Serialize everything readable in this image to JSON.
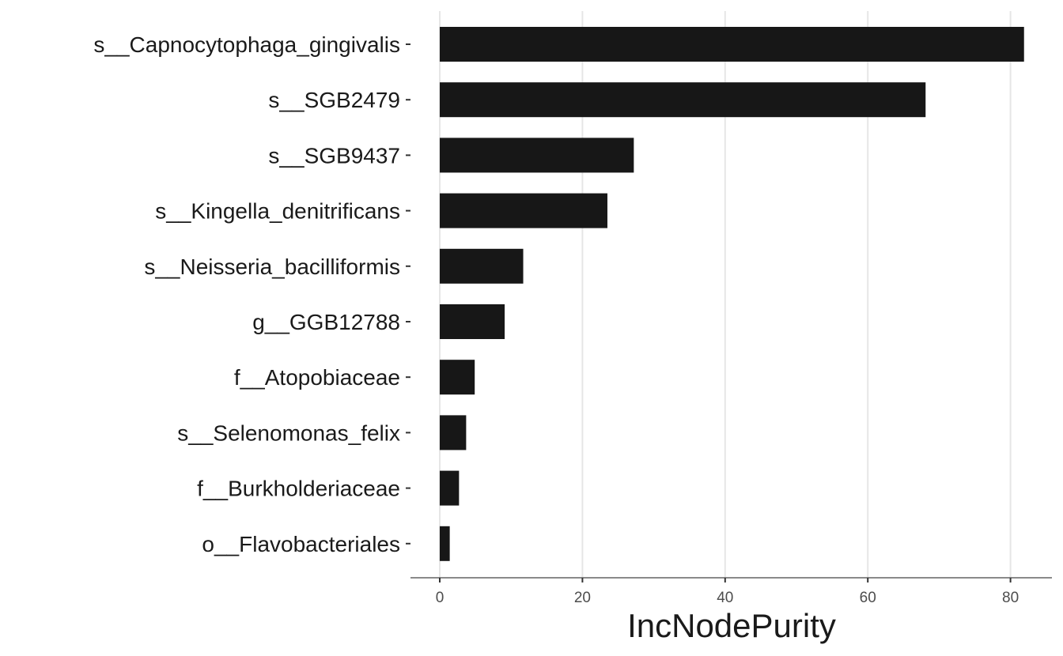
{
  "chart_data": {
    "type": "bar",
    "orientation": "horizontal",
    "title": "",
    "xlabel": "IncNodePurity",
    "ylabel": "",
    "xlim": [
      -2,
      85
    ],
    "x_ticks": [
      0,
      20,
      40,
      60,
      80
    ],
    "grid": "vertical major gridlines",
    "bar_color": "#171717",
    "grid_color": "#e6e6e6",
    "axis_color": "#8a8a8a",
    "categories": [
      "s__Capnocytophaga_gingivalis",
      "s__SGB2479",
      "s__SGB9437",
      "s__Kingella_denitrificans",
      "s__Neisseria_bacilliformis",
      "g__GGB12788",
      "f__Atopobiaceae",
      "s__Selenomonas_felix",
      "f__Burkholderiaceae",
      "o__Flavobacteriales"
    ],
    "values": [
      81.9,
      68.1,
      27.2,
      23.5,
      11.7,
      9.1,
      4.9,
      3.7,
      2.7,
      1.4
    ]
  }
}
